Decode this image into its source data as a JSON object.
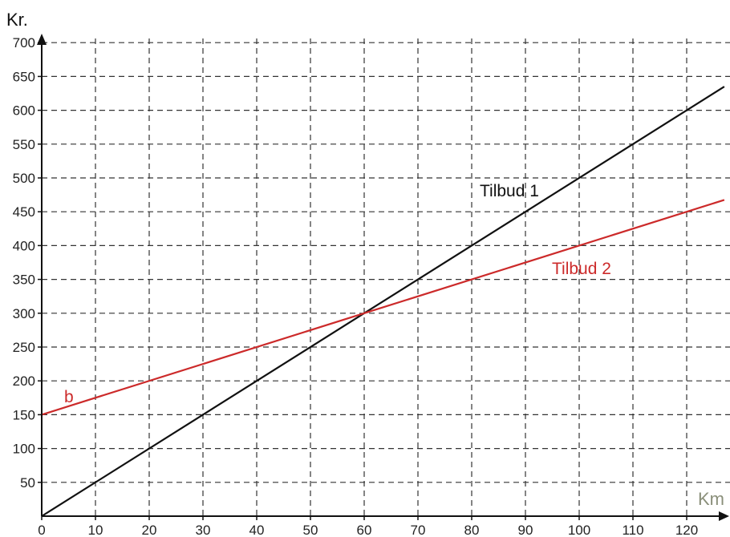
{
  "chart_data": {
    "type": "line",
    "ylabel": "Kr.",
    "xlabel": "Km",
    "xlim": [
      0,
      127
    ],
    "ylim": [
      0,
      700
    ],
    "x_ticks": [
      0,
      10,
      20,
      30,
      40,
      50,
      60,
      70,
      80,
      90,
      100,
      110,
      120
    ],
    "y_ticks": [
      50,
      100,
      150,
      200,
      250,
      300,
      350,
      400,
      450,
      500,
      550,
      600,
      650,
      700
    ],
    "grid": true,
    "series": [
      {
        "name": "Tilbud 1",
        "color": "#111111",
        "x": [
          0,
          127
        ],
        "y": [
          0,
          635
        ]
      },
      {
        "name": "Tilbud 2",
        "color": "#cc2a2a",
        "x": [
          0,
          127
        ],
        "y": [
          150,
          467.5
        ]
      }
    ],
    "annotations": [
      {
        "text": "b",
        "x": 5,
        "y": 176,
        "color": "#cc2a2a"
      }
    ],
    "colors": {
      "xlabel": "#8a8f7a",
      "ylabel": "#111111",
      "axis": "#111111",
      "grid": "#333333"
    }
  }
}
